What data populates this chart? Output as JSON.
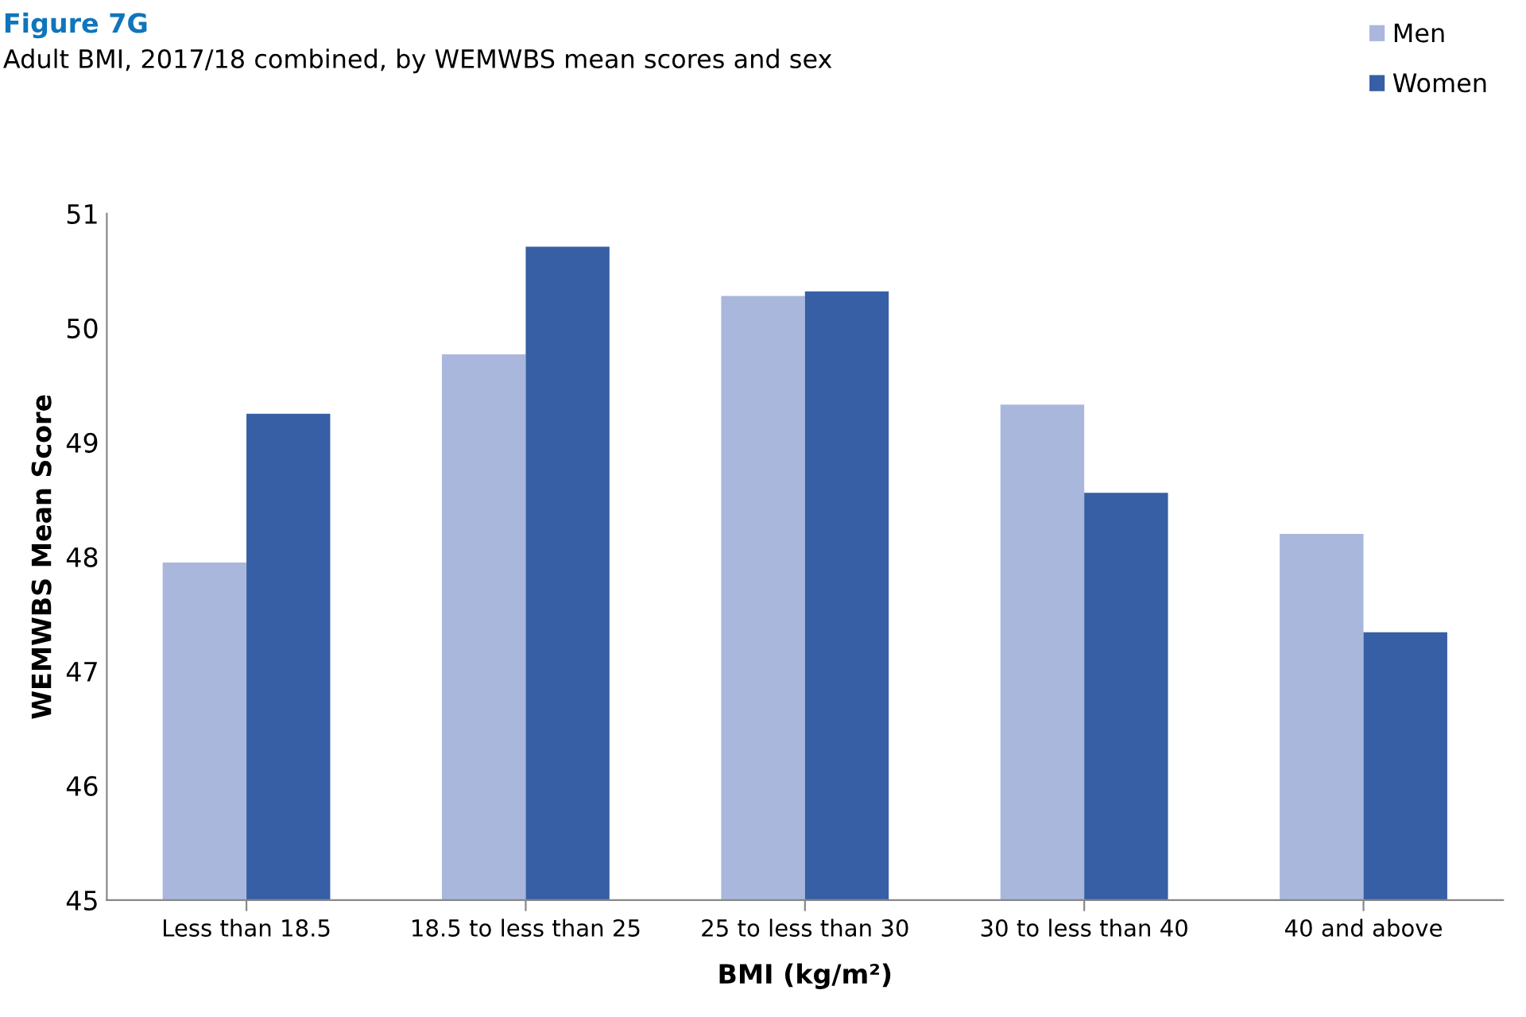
{
  "chart_data": {
    "type": "bar",
    "title": "Figure 7G",
    "subtitle": "Adult BMI, 2017/18 combined, by WEMWBS mean scores and sex",
    "xlabel": "BMI (kg/m²)",
    "ylabel": "WEMWBS Mean Score",
    "categories": [
      "Less than 18.5",
      "18.5 to less than 25",
      "25 to less than 30",
      "30 to less than 40",
      "40 and above"
    ],
    "series": [
      {
        "name": "Men",
        "color": "#a9b7dc",
        "values": [
          47.95,
          49.77,
          50.28,
          49.33,
          48.2
        ]
      },
      {
        "name": "Women",
        "color": "#365fa5",
        "values": [
          49.25,
          50.71,
          50.32,
          48.56,
          47.34
        ]
      }
    ],
    "ylim": [
      45,
      51
    ],
    "yticks": [
      45,
      46,
      47,
      48,
      49,
      50,
      51
    ],
    "grid": false,
    "legend": "top right"
  }
}
